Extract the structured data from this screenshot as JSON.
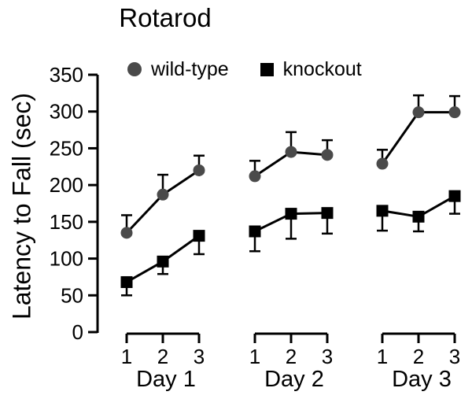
{
  "figure": {
    "title": "Rotarod",
    "ylabel": "Latency to Fall (sec)"
  },
  "legend": {
    "items": [
      {
        "label": "wild-type",
        "marker": "circle",
        "color": "#4a4a4a"
      },
      {
        "label": "knockout",
        "marker": "square",
        "color": "#000000"
      }
    ]
  },
  "chart_data": {
    "type": "line",
    "title": "Rotarod",
    "ylabel": "Latency to Fall (sec)",
    "ylim": [
      0,
      350
    ],
    "ytick_step": 50,
    "ytick_labels": [
      "0",
      "50",
      "100",
      "150",
      "200",
      "250",
      "300",
      "350"
    ],
    "grid": false,
    "legend_position": "top",
    "groups": [
      {
        "label": "Day 1",
        "trial_labels": [
          "1",
          "2",
          "3"
        ]
      },
      {
        "label": "Day 2",
        "trial_labels": [
          "1",
          "2",
          "3"
        ]
      },
      {
        "label": "Day 3",
        "trial_labels": [
          "1",
          "2",
          "3"
        ]
      }
    ],
    "series": [
      {
        "name": "wild-type",
        "marker": "circle",
        "color": "#4a4a4a",
        "line_color": "#000000",
        "error_direction": "up",
        "values": [
          [
            135,
            187,
            220
          ],
          [
            212,
            245,
            241
          ],
          [
            229,
            299,
            299
          ]
        ],
        "errors": [
          [
            24,
            27,
            20
          ],
          [
            21,
            27,
            20
          ],
          [
            19,
            23,
            22
          ]
        ]
      },
      {
        "name": "knockout",
        "marker": "square",
        "color": "#000000",
        "line_color": "#000000",
        "error_direction": "down",
        "values": [
          [
            68,
            96,
            131
          ],
          [
            137,
            161,
            162
          ],
          [
            165,
            157,
            185
          ]
        ],
        "errors": [
          [
            18,
            17,
            25
          ],
          [
            27,
            34,
            28
          ],
          [
            27,
            20,
            24
          ]
        ]
      }
    ]
  }
}
